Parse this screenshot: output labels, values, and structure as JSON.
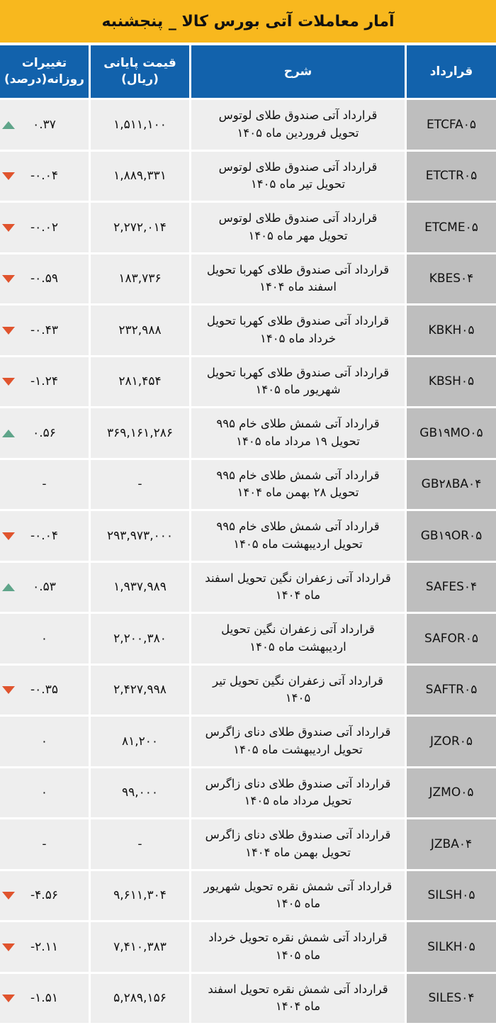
{
  "title": "آمار معاملات آتی بورس کالا _ پنجشنبه",
  "headers": {
    "change": "تغییرات روزانه(درصد)",
    "price": "قیمت پایانی (ریال)",
    "desc": "شرح",
    "contract": "قرارداد"
  },
  "colors": {
    "header_bar": "#F8B81E",
    "column_header": "#1262AC",
    "up": "#5FA58A",
    "down": "#E0542E"
  },
  "rows": [
    {
      "contract": "ETCFA۰۵",
      "desc1": "قرارداد آتی صندوق طلای لوتوس",
      "desc2": "تحویل فروردین ماه ۱۴۰۵",
      "price": "۱,۵۱۱,۱۰۰",
      "change": "۰.۳۷",
      "trend": "up"
    },
    {
      "contract": "ETCTR۰۵",
      "desc1": "قرارداد آتی صندوق طلای لوتوس",
      "desc2": "تحویل تیر ماه ۱۴۰۵",
      "price": "۱,۸۸۹,۳۳۱",
      "change": "-۰.۰۴",
      "trend": "down"
    },
    {
      "contract": "ETCME۰۵",
      "desc1": "قرارداد آتی صندوق طلای لوتوس",
      "desc2": "تحویل مهر ماه ۱۴۰۵",
      "price": "۲,۲۷۲,۰۱۴",
      "change": "-۰.۰۲",
      "trend": "down"
    },
    {
      "contract": "KBES۰۴",
      "desc1": "قرارداد آتی صندوق طلای کهربا تحویل",
      "desc2": "اسفند ماه ۱۴۰۴",
      "price": "۱۸۳,۷۳۶",
      "change": "-۰.۵۹",
      "trend": "down"
    },
    {
      "contract": "KBKH۰۵",
      "desc1": "قرارداد آتی صندوق طلای کهربا تحویل",
      "desc2": "خرداد ماه ۱۴۰۵",
      "price": "۲۳۲,۹۸۸",
      "change": "-۰.۴۳",
      "trend": "down"
    },
    {
      "contract": "KBSH۰۵",
      "desc1": "قرارداد آتی صندوق طلای کهربا تحویل",
      "desc2": "شهریور ماه ۱۴۰۵",
      "price": "۲۸۱,۴۵۴",
      "change": "-۱.۲۴",
      "trend": "down"
    },
    {
      "contract": "GB۱۹MO۰۵",
      "desc1": "قرارداد آتی شمش طلای خام ۹۹۵",
      "desc2": "تحویل ۱۹ مرداد ماه ۱۴۰۵",
      "price": "۳۶۹,۱۶۱,۲۸۶",
      "change": "۰.۵۶",
      "trend": "up"
    },
    {
      "contract": "GB۲۸BA۰۴",
      "desc1": "قرارداد آتی شمش طلای خام ۹۹۵",
      "desc2": "تحویل ۲۸ بهمن ماه ۱۴۰۴",
      "price": "-",
      "change": "-",
      "trend": "none"
    },
    {
      "contract": "GB۱۹OR۰۵",
      "desc1": "قرارداد آتی شمش طلای خام ۹۹۵",
      "desc2": "تحویل اردیبهشت ماه ۱۴۰۵",
      "price": "۲۹۳,۹۷۳,۰۰۰",
      "change": "-۰.۰۴",
      "trend": "down"
    },
    {
      "contract": "SAFES۰۴",
      "desc1": "قرارداد آتی زعفران نگین تحویل اسفند",
      "desc2": "ماه ۱۴۰۴",
      "price": "۱,۹۳۷,۹۸۹",
      "change": "۰.۵۳",
      "trend": "up"
    },
    {
      "contract": "SAFOR۰۵",
      "desc1": "قرارداد آتی زعفران نگین تحویل",
      "desc2": "اردیبهشت ماه ۱۴۰۵",
      "price": "۲,۲۰۰,۳۸۰",
      "change": "۰",
      "trend": "none"
    },
    {
      "contract": "SAFTR۰۵",
      "desc1": "قرارداد آتی زعفران نگین تحویل تیر",
      "desc2": "۱۴۰۵",
      "price": "۲,۴۲۷,۹۹۸",
      "change": "-۰.۳۵",
      "trend": "down"
    },
    {
      "contract": "JZOR۰۵",
      "desc1": "قرارداد آتی صندوق طلای دنای زاگرس",
      "desc2": "تحویل اردیبهشت ماه ۱۴۰۵",
      "price": "۸۱,۲۰۰",
      "change": "۰",
      "trend": "none"
    },
    {
      "contract": "JZMO۰۵",
      "desc1": "قرارداد آتی صندوق طلای دنای زاگرس",
      "desc2": "تحویل مرداد ماه ۱۴۰۵",
      "price": "۹۹,۰۰۰",
      "change": "۰",
      "trend": "none"
    },
    {
      "contract": "JZBA۰۴",
      "desc1": "قرارداد آتی صندوق طلای دنای زاگرس",
      "desc2": "تحویل بهمن ماه ۱۴۰۴",
      "price": "-",
      "change": "-",
      "trend": "none"
    },
    {
      "contract": "SILSH۰۵",
      "desc1": "قرارداد آتی شمش نقره تحویل شهریور",
      "desc2": "ماه ۱۴۰۵",
      "price": "۹,۶۱۱,۳۰۴",
      "change": "-۴.۵۶",
      "trend": "down"
    },
    {
      "contract": "SILKH۰۵",
      "desc1": "قرارداد آتی شمش نقره تحویل خرداد",
      "desc2": "ماه ۱۴۰۵",
      "price": "۷,۴۱۰,۳۸۳",
      "change": "-۲.۱۱",
      "trend": "down"
    },
    {
      "contract": "SILES۰۴",
      "desc1": "قرارداد آتی شمش نقره تحویل اسفند",
      "desc2": "ماه ۱۴۰۴",
      "price": "۵,۲۸۹,۱۵۶",
      "change": "-۱.۵۱",
      "trend": "down"
    }
  ]
}
